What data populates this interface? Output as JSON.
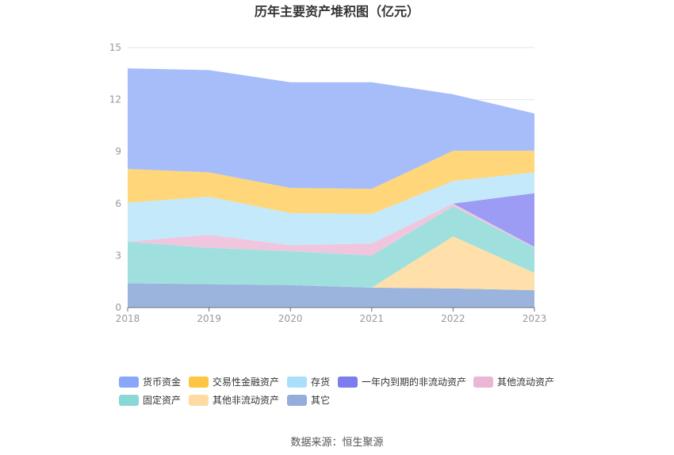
{
  "chart_data": {
    "type": "area",
    "stacked": true,
    "title": "历年主要资产堆积图（亿元）",
    "x": [
      "2018",
      "2019",
      "2020",
      "2021",
      "2022",
      "2023"
    ],
    "ylim": [
      0,
      15
    ],
    "yticks": [
      "0",
      "3",
      "6",
      "9",
      "12",
      "15"
    ],
    "grid": true,
    "legend_position": "bottom",
    "series": [
      {
        "name": "其它",
        "color": "#9bb4dd",
        "values": [
          1.4,
          1.35,
          1.3,
          1.15,
          1.1,
          1.0
        ]
      },
      {
        "name": "其他非流动资产",
        "color": "#ffdfaa",
        "values": [
          0.0,
          0.0,
          0.0,
          0.0,
          3.0,
          1.0
        ]
      },
      {
        "name": "固定资产",
        "color": "#9fe0df",
        "values": [
          2.4,
          2.1,
          1.95,
          1.85,
          1.75,
          1.45
        ]
      },
      {
        "name": "其他流动资产",
        "color": "#f0c6df",
        "values": [
          0.0,
          0.75,
          0.35,
          0.7,
          0.15,
          0.05
        ]
      },
      {
        "name": "一年内到期的非流动资产",
        "color": "#9c9cf4",
        "values": [
          0.0,
          0.0,
          0.0,
          0.0,
          0.0,
          3.1
        ]
      },
      {
        "name": "存货",
        "color": "#c3e9fb",
        "values": [
          2.25,
          2.2,
          1.85,
          1.7,
          1.3,
          1.2
        ]
      },
      {
        "name": "交易性金融资产",
        "color": "#ffd679",
        "values": [
          1.95,
          1.4,
          1.45,
          1.45,
          1.75,
          1.25
        ]
      },
      {
        "name": "货币资金",
        "color": "#a6bdfa",
        "values": [
          5.8,
          5.9,
          6.1,
          6.15,
          3.25,
          2.15
        ]
      }
    ],
    "legend": [
      {
        "name": "货币资金",
        "color": "#8aa6f8"
      },
      {
        "name": "交易性金融资产",
        "color": "#fec443"
      },
      {
        "name": "存货",
        "color": "#aadff9"
      },
      {
        "name": "一年内到期的非流动资产",
        "color": "#7b7cf0"
      },
      {
        "name": "其他流动资产",
        "color": "#ebb6d6"
      },
      {
        "name": "固定资产",
        "color": "#8ad8d6"
      },
      {
        "name": "其他非流动资产",
        "color": "#ffdba3"
      },
      {
        "name": "其它",
        "color": "#94aedb"
      }
    ]
  },
  "source_text": "数据来源：恒生聚源"
}
